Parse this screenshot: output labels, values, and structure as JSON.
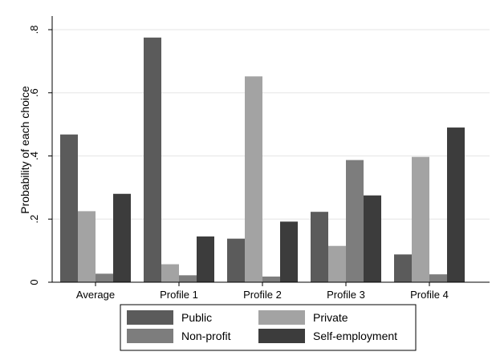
{
  "chart_data": {
    "type": "bar",
    "categories": [
      "Average",
      "Profile 1",
      "Profile 2",
      "Profile 3",
      "Profile 4"
    ],
    "series": [
      {
        "name": "Public",
        "color": "#5b5b5b",
        "values": [
          0.468,
          0.775,
          0.138,
          0.223,
          0.088
        ]
      },
      {
        "name": "Private",
        "color": "#a3a3a3",
        "values": [
          0.225,
          0.057,
          0.652,
          0.115,
          0.397
        ]
      },
      {
        "name": "Non-profit",
        "color": "#7d7d7d",
        "values": [
          0.027,
          0.022,
          0.018,
          0.387,
          0.025
        ]
      },
      {
        "name": "Self-employment",
        "color": "#3c3c3c",
        "values": [
          0.28,
          0.145,
          0.192,
          0.275,
          0.49
        ]
      }
    ],
    "title": "",
    "xlabel": "",
    "ylabel": "Probability of each choice",
    "ylim": [
      0,
      0.8
    ],
    "yticks": [
      0,
      0.2,
      0.4,
      0.6,
      0.8
    ],
    "ytick_labels": [
      "0",
      ".2",
      ".4",
      ".6",
      ".8"
    ],
    "grid": true,
    "legend_position": "bottom"
  }
}
